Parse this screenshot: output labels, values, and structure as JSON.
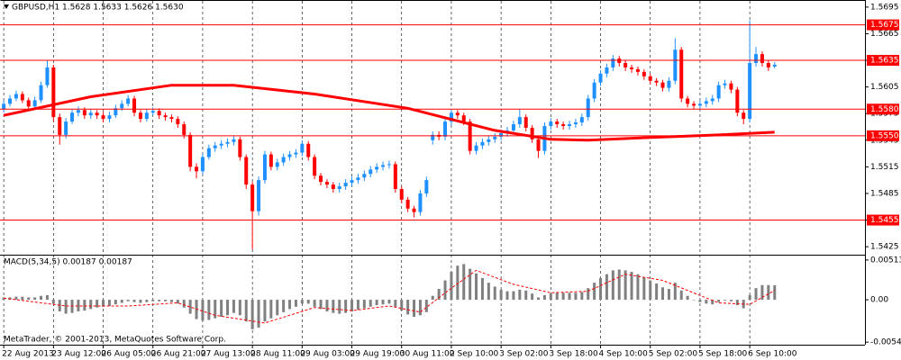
{
  "chart_data": [
    {
      "type": "candlestick",
      "title": "GBPUSD,H1  1.5628 1.5633 1.5626 1.5630",
      "annotation": "MetaTrader, © 2001-2013, MetaQuotes Software Corp.",
      "up_color": "#1e90ff",
      "down_color": "#ff0000",
      "categories": [
        "22 Aug 2013",
        null,
        null,
        null,
        null,
        null,
        null,
        null,
        "23 Aug 12:00",
        null,
        null,
        null,
        null,
        null,
        null,
        null,
        "26 Aug 05:00",
        null,
        null,
        null,
        null,
        null,
        null,
        null,
        "26 Aug 21:00",
        null,
        null,
        null,
        null,
        null,
        null,
        null,
        "27 Aug 13:00",
        null,
        null,
        null,
        null,
        null,
        null,
        null,
        "28 Aug 11:00",
        null,
        null,
        null,
        null,
        null,
        null,
        null,
        "29 Aug 03:00",
        null,
        null,
        null,
        null,
        null,
        null,
        null,
        "29 Aug 19:00",
        null,
        null,
        null,
        null,
        null,
        null,
        null,
        "30 Aug 11:00",
        null,
        null,
        null,
        null,
        null,
        null,
        null,
        "2 Sep 10:00",
        null,
        null,
        null,
        null,
        null,
        null,
        null,
        "3 Sep 02:00",
        null,
        null,
        null,
        null,
        null,
        null,
        null,
        "3 Sep 18:00",
        null,
        null,
        null,
        null,
        null,
        null,
        null,
        "4 Sep 10:00",
        null,
        null,
        null,
        null,
        null,
        null,
        null,
        "5 Sep 02:00",
        null,
        null,
        null,
        null,
        null,
        null,
        null,
        "5 Sep 18:00",
        null,
        null,
        null,
        null,
        null,
        null,
        null,
        "6 Sep 10:00",
        null,
        null,
        null,
        null
      ],
      "open": [
        1.558,
        1.5586,
        1.5592,
        1.5597,
        1.559,
        1.5583,
        1.559,
        1.5607,
        1.5627,
        1.5571,
        1.5551,
        1.5566,
        1.5576,
        1.5579,
        1.5573,
        1.5576,
        1.5573,
        1.5569,
        1.5573,
        1.5581,
        1.5586,
        1.5592,
        1.5576,
        1.5569,
        1.5576,
        1.5578,
        1.5573,
        1.5571,
        1.5569,
        1.5563,
        1.5551,
        1.5515,
        1.551,
        1.5526,
        1.5536,
        1.5539,
        1.5541,
        1.5543,
        1.5546,
        1.5526,
        1.5495,
        1.5465,
        1.55,
        1.5529,
        1.5515,
        1.552,
        1.5526,
        1.5529,
        1.5531,
        1.5541,
        1.5526,
        1.5505,
        1.5498,
        1.5495,
        1.549,
        1.5493,
        1.5497,
        1.55,
        1.5503,
        1.5507,
        1.5512,
        1.5515,
        1.5517,
        1.5518,
        1.549,
        1.5478,
        1.5468,
        1.5464,
        1.5485,
        1.5545,
        1.5551,
        1.5549,
        1.5566,
        1.5576,
        1.5573,
        1.5566,
        1.5533,
        1.5539,
        1.5543,
        1.5546,
        1.5549,
        1.5553,
        1.5556,
        1.5563,
        1.5571,
        1.5559,
        1.5546,
        1.5533,
        1.5561,
        1.5566,
        1.5563,
        1.5561,
        1.5563,
        1.5565,
        1.5571,
        1.5592,
        1.561,
        1.562,
        1.5627,
        1.5637,
        1.5632,
        1.5627,
        1.5625,
        1.5622,
        1.5617,
        1.5612,
        1.561,
        1.5604,
        1.5612,
        1.5647,
        1.5592,
        1.5586,
        1.5584,
        1.5586,
        1.5589,
        1.5592,
        1.5607,
        1.5609,
        1.5602,
        1.5576,
        1.5569,
        1.5632,
        1.5642,
        1.5632,
        1.5628
      ],
      "high": [
        1.559,
        1.5596,
        1.5601,
        1.56,
        1.5593,
        1.5594,
        1.5611,
        1.5635,
        1.563,
        1.5575,
        1.557,
        1.558,
        1.5583,
        1.5582,
        1.558,
        1.5579,
        1.5577,
        1.5577,
        1.5585,
        1.559,
        1.5596,
        1.5595,
        1.5579,
        1.558,
        1.5582,
        1.5581,
        1.5576,
        1.5574,
        1.5572,
        1.5566,
        1.5554,
        1.5519,
        1.553,
        1.554,
        1.5543,
        1.5545,
        1.5547,
        1.555,
        1.5549,
        1.5529,
        1.5498,
        1.5504,
        1.5533,
        1.5532,
        1.5524,
        1.553,
        1.5533,
        1.5535,
        1.5545,
        1.5544,
        1.5529,
        1.5508,
        1.5501,
        1.5498,
        1.5497,
        1.5501,
        1.5504,
        1.5507,
        1.5511,
        1.5516,
        1.5519,
        1.5521,
        1.5522,
        1.5521,
        1.5493,
        1.5481,
        1.5471,
        1.5489,
        1.5504,
        1.5555,
        1.5555,
        1.557,
        1.558,
        1.5579,
        1.5576,
        1.5569,
        1.5543,
        1.5547,
        1.555,
        1.5553,
        1.5557,
        1.556,
        1.5567,
        1.558,
        1.5574,
        1.5562,
        1.5549,
        1.5565,
        1.557,
        1.5569,
        1.5566,
        1.5567,
        1.5569,
        1.5575,
        1.5596,
        1.5614,
        1.5624,
        1.5631,
        1.5641,
        1.564,
        1.5635,
        1.563,
        1.5628,
        1.5625,
        1.562,
        1.5615,
        1.5613,
        1.5616,
        1.566,
        1.565,
        1.5595,
        1.5589,
        1.559,
        1.5593,
        1.5596,
        1.5611,
        1.5613,
        1.5612,
        1.5605,
        1.5579,
        1.568,
        1.565,
        1.5645,
        1.5635,
        1.5633
      ],
      "low": [
        1.5576,
        1.5583,
        1.5589,
        1.5587,
        1.5579,
        1.558,
        1.5587,
        1.5604,
        1.5566,
        1.554,
        1.5547,
        1.5563,
        1.5572,
        1.5569,
        1.5569,
        1.5569,
        1.5565,
        1.5565,
        1.557,
        1.5578,
        1.5583,
        1.5572,
        1.5565,
        1.5566,
        1.5573,
        1.5569,
        1.5567,
        1.5565,
        1.5559,
        1.5547,
        1.551,
        1.5502,
        1.5507,
        1.5523,
        1.5532,
        1.5535,
        1.5537,
        1.5539,
        1.5522,
        1.549,
        1.5422,
        1.546,
        1.5496,
        1.5511,
        1.5511,
        1.5516,
        1.5522,
        1.5525,
        1.5527,
        1.5522,
        1.5501,
        1.5494,
        1.5491,
        1.5486,
        1.5486,
        1.5489,
        1.5493,
        1.5496,
        1.5499,
        1.5503,
        1.5508,
        1.5511,
        1.5513,
        1.5486,
        1.5474,
        1.5464,
        1.5458,
        1.546,
        1.5481,
        1.554,
        1.5545,
        1.5545,
        1.5562,
        1.5569,
        1.5562,
        1.5529,
        1.5529,
        1.5535,
        1.5539,
        1.5542,
        1.5545,
        1.5549,
        1.5552,
        1.5559,
        1.5555,
        1.5542,
        1.5525,
        1.5529,
        1.5557,
        1.5559,
        1.5557,
        1.5557,
        1.5559,
        1.5561,
        1.5567,
        1.5588,
        1.5606,
        1.5616,
        1.5623,
        1.5628,
        1.5623,
        1.5621,
        1.5618,
        1.5613,
        1.5608,
        1.5606,
        1.56,
        1.56,
        1.5608,
        1.5588,
        1.5582,
        1.558,
        1.558,
        1.5582,
        1.5585,
        1.5588,
        1.5603,
        1.5598,
        1.5572,
        1.5563,
        1.5565,
        1.5628,
        1.5628,
        1.5623,
        1.5626
      ],
      "close": [
        1.5586,
        1.5592,
        1.5597,
        1.559,
        1.5583,
        1.559,
        1.5607,
        1.5627,
        1.5571,
        1.5551,
        1.5566,
        1.5576,
        1.5579,
        1.5573,
        1.5576,
        1.5573,
        1.5569,
        1.5573,
        1.5581,
        1.5586,
        1.5592,
        1.5576,
        1.5569,
        1.5576,
        1.5578,
        1.5573,
        1.5571,
        1.5569,
        1.5563,
        1.5551,
        1.5515,
        1.551,
        1.5526,
        1.5536,
        1.5539,
        1.5541,
        1.5543,
        1.5546,
        1.5526,
        1.5495,
        1.5465,
        1.55,
        1.5529,
        1.5515,
        1.552,
        1.5526,
        1.5529,
        1.5531,
        1.5541,
        1.5526,
        1.5505,
        1.5498,
        1.5495,
        1.549,
        1.5493,
        1.5497,
        1.55,
        1.5503,
        1.5507,
        1.5512,
        1.5515,
        1.5517,
        1.5518,
        1.549,
        1.5478,
        1.5468,
        1.5464,
        1.5485,
        1.55,
        1.5551,
        1.5549,
        1.5566,
        1.5576,
        1.5573,
        1.5566,
        1.5533,
        1.5539,
        1.5543,
        1.5546,
        1.5549,
        1.5553,
        1.5556,
        1.5563,
        1.5571,
        1.5559,
        1.5546,
        1.5533,
        1.5561,
        1.5566,
        1.5563,
        1.5561,
        1.5563,
        1.5565,
        1.5571,
        1.5592,
        1.561,
        1.562,
        1.5627,
        1.5637,
        1.5632,
        1.5627,
        1.5625,
        1.5622,
        1.5617,
        1.5612,
        1.561,
        1.5604,
        1.5612,
        1.5647,
        1.5592,
        1.5586,
        1.5584,
        1.5586,
        1.5589,
        1.5592,
        1.5607,
        1.5609,
        1.5602,
        1.5576,
        1.5569,
        1.5632,
        1.5642,
        1.5632,
        1.5627,
        1.563
      ],
      "series": [
        {
          "color": "#ff0000",
          "width": 3,
          "x": [
            0,
            14,
            27,
            37,
            50,
            65,
            79,
            88,
            94,
            104,
            115,
            124
          ],
          "values": [
            1.5573,
            1.5594,
            1.5607,
            1.5607,
            1.5597,
            1.5581,
            1.5556,
            1.5546,
            1.5545,
            1.5548,
            1.5551,
            1.5554
          ]
        }
      ],
      "levels": [
        1.5675,
        1.5635,
        {
          "value": 1.558,
          "label": "1.5580"
        },
        {
          "value": 1.555,
          "label": "1.5550"
        },
        1.5455
      ],
      "level_color": "#ff0000",
      "ylim": [
        1.5417,
        1.5703
      ],
      "yticks": [
        1.5695,
        1.5665,
        1.5635,
        1.5605,
        1.5575,
        1.5545,
        1.5515,
        1.5485,
        1.5455,
        1.5425
      ],
      "grid": true
    },
    {
      "type": "bar",
      "title": "MACD(5,34,5) 0.00187 0.00187",
      "color": "#808080",
      "values": [
        0.0003,
        0.0003,
        0.0004,
        0.0004,
        0.0003,
        0.0003,
        0.0005,
        0.0006,
        -0.0005,
        -0.0015,
        -0.0018,
        -0.0017,
        -0.0015,
        -0.0014,
        -0.0012,
        -0.001,
        -0.0009,
        -0.0008,
        -0.0006,
        -0.0004,
        -0.0002,
        -0.0003,
        -0.0004,
        -0.0003,
        -0.0002,
        -0.0002,
        -0.0002,
        -0.0003,
        -0.0005,
        -0.001,
        -0.0018,
        -0.0025,
        -0.0027,
        -0.0026,
        -0.0024,
        -0.0022,
        -0.002,
        -0.0017,
        -0.002,
        -0.0028,
        -0.0038,
        -0.0036,
        -0.0028,
        -0.0024,
        -0.002,
        -0.0016,
        -0.0012,
        -0.0009,
        -0.0005,
        -0.0005,
        -0.0009,
        -0.0012,
        -0.0015,
        -0.0017,
        -0.0018,
        -0.0017,
        -0.0015,
        -0.0013,
        -0.0011,
        -0.0009,
        -0.0007,
        -0.0006,
        -0.0005,
        -0.0009,
        -0.0014,
        -0.0019,
        -0.0022,
        -0.002,
        -0.0016,
        0.0005,
        0.0014,
        0.0025,
        0.0036,
        0.0044,
        0.0046,
        0.004,
        0.0034,
        0.0028,
        0.0022,
        0.0017,
        0.0013,
        0.0011,
        0.0011,
        0.0013,
        0.0012,
        0.0008,
        0.0003,
        0.0006,
        0.0008,
        0.0009,
        0.0009,
        0.0009,
        0.0009,
        0.001,
        0.0015,
        0.0022,
        0.0028,
        0.0033,
        0.0038,
        0.0039,
        0.0038,
        0.0036,
        0.0033,
        0.0029,
        0.0025,
        0.0021,
        0.0016,
        0.0014,
        0.0022,
        0.0012,
        0.0005,
        0,
        -0.0003,
        -0.0005,
        -0.0006,
        -0.0003,
        -0.0001,
        -0.0002,
        -0.0007,
        -0.0011,
        0.0006,
        0.0015,
        0.0019,
        0.0019,
        0.00187
      ],
      "series": [
        {
          "color": "#ff0000",
          "width": 1,
          "dashed": true,
          "x": [
            0,
            10,
            20,
            28,
            34,
            42,
            50,
            56,
            62,
            67,
            72,
            76,
            82,
            88,
            94,
            100,
            106,
            110,
            115,
            120,
            124
          ],
          "values": [
            0.0002,
            -0.0008,
            -0.0008,
            -0.0004,
            -0.002,
            -0.003,
            -0.001,
            -0.0014,
            -0.0008,
            -0.0016,
            0.0015,
            0.0038,
            0.002,
            0.0009,
            0.0011,
            0.0033,
            0.0025,
            0.0012,
            -0.0004,
            -0.0006,
            0.0012
          ]
        }
      ],
      "ylim": [
        -0.0058,
        0.0057
      ],
      "yticks": [
        0.00513,
        {
          "value": 0,
          "label": "0.00"
        },
        -0.00547
      ]
    }
  ]
}
